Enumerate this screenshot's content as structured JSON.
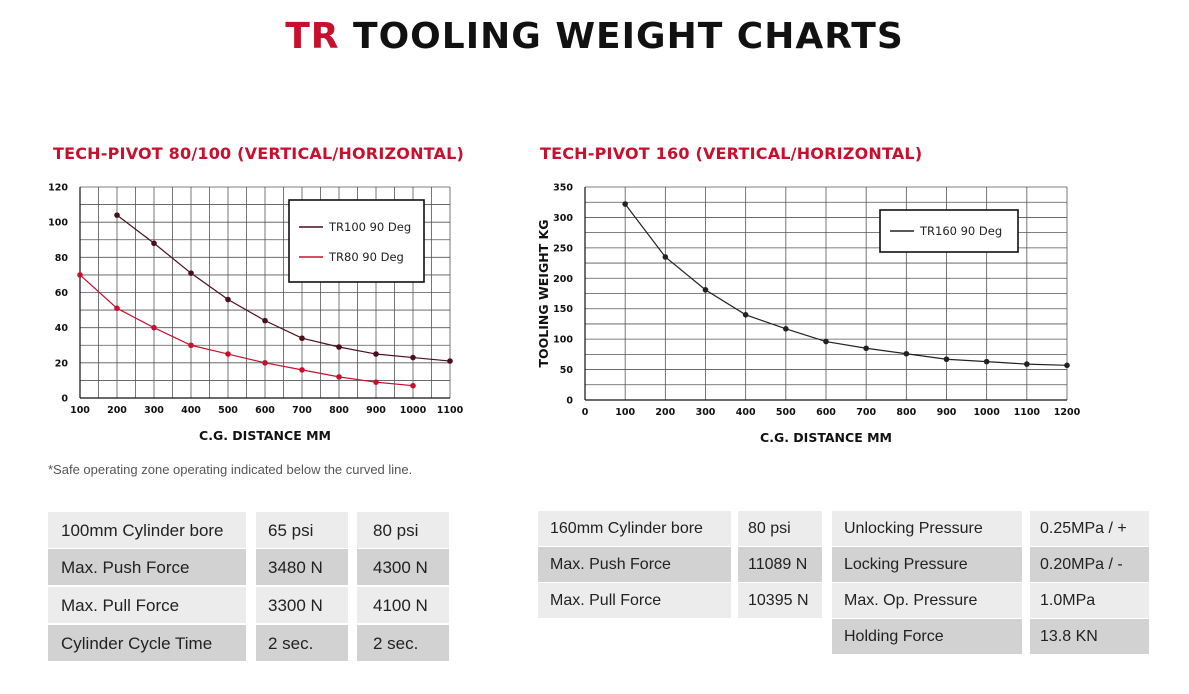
{
  "header": {
    "brand": "TR",
    "title": "TOOLING WEIGHT CHARTS"
  },
  "charts": {
    "left_title": "TECH-PIVOT 80/100 (VERTICAL/HORIZONTAL)",
    "right_title": "TECH-PIVOT 160 (VERTICAL/HORIZONTAL)"
  },
  "chart_data": [
    {
      "type": "line",
      "title": "TECH-PIVOT 80/100 (VERTICAL/HORIZONTAL)",
      "xlabel": "C.G. DISTANCE MM",
      "ylabel": "",
      "xlim": [
        100,
        1100
      ],
      "ylim": [
        0,
        120
      ],
      "xticks": [
        100,
        200,
        300,
        400,
        500,
        600,
        700,
        800,
        900,
        1000,
        1100
      ],
      "yticks": [
        0,
        20,
        40,
        60,
        80,
        100,
        120
      ],
      "grid": true,
      "legend": "top-right",
      "series": [
        {
          "name": "TR100 90 Deg",
          "color": "#4a0f1a",
          "x": [
            200,
            300,
            400,
            500,
            600,
            700,
            800,
            900,
            1000,
            1100
          ],
          "y": [
            104,
            88,
            71,
            56,
            44,
            34,
            29,
            25,
            23,
            21
          ]
        },
        {
          "name": "TR80 90 Deg",
          "color": "#c8102e",
          "x": [
            100,
            200,
            300,
            400,
            500,
            600,
            700,
            800,
            900,
            1000
          ],
          "y": [
            70,
            51,
            40,
            30,
            25,
            20,
            16,
            12,
            9,
            7
          ]
        }
      ]
    },
    {
      "type": "line",
      "title": "TECH-PIVOT 160 (VERTICAL/HORIZONTAL)",
      "xlabel": "C.G. DISTANCE MM",
      "ylabel": "TOOLING WEIGHT KG",
      "xlim": [
        0,
        1200
      ],
      "ylim": [
        0,
        350
      ],
      "xticks": [
        0,
        100,
        200,
        300,
        400,
        500,
        600,
        700,
        800,
        900,
        1000,
        1100,
        1200
      ],
      "yticks": [
        0,
        50,
        100,
        150,
        200,
        250,
        300,
        350
      ],
      "grid": true,
      "legend": "top-right",
      "series": [
        {
          "name": "TR160 90 Deg",
          "color": "#222222",
          "x": [
            100,
            200,
            300,
            400,
            500,
            600,
            700,
            800,
            900,
            1000,
            1100,
            1200
          ],
          "y": [
            322,
            235,
            181,
            140,
            117,
            96,
            85,
            76,
            67,
            63,
            59,
            57
          ]
        }
      ]
    }
  ],
  "footnote": "*Safe operating zone operating indicated below the curved line.",
  "spec_left": {
    "rows": [
      [
        "100mm Cylinder bore",
        "65 psi",
        "80 psi"
      ],
      [
        "Max. Push Force",
        "3480 N",
        "4300 N"
      ],
      [
        "Max. Pull Force",
        "3300 N",
        "4100 N"
      ],
      [
        "Cylinder Cycle Time",
        "2 sec.",
        "2 sec."
      ]
    ]
  },
  "spec_right": {
    "rows": [
      [
        "160mm Cylinder bore",
        "80 psi",
        "Unlocking Pressure",
        "0.25MPa / +"
      ],
      [
        "Max. Push Force",
        "11089 N",
        "Locking Pressure",
        "0.20MPa / -"
      ],
      [
        "Max. Pull Force",
        "10395 N",
        "Max. Op. Pressure",
        "1.0MPa"
      ],
      [
        "",
        "",
        "Holding Force",
        "13.8 KN"
      ]
    ]
  },
  "colors": {
    "brand_red": "#c8102e",
    "tr100": "#4a0f1a",
    "tr160": "#222222",
    "cell_light": "#ececec",
    "cell_dark": "#d2d2d2"
  }
}
